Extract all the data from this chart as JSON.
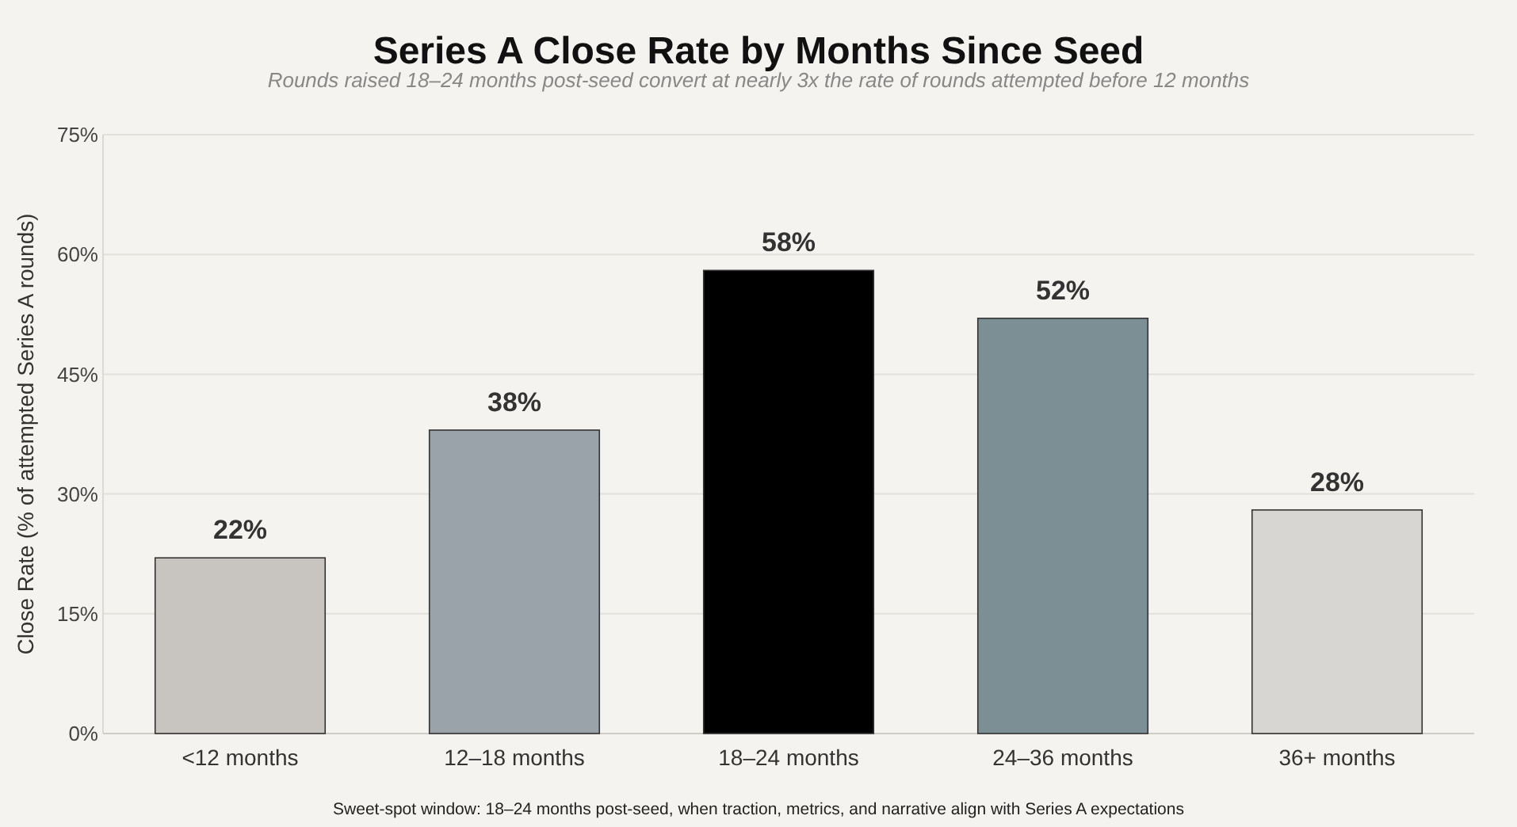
{
  "chart_data": {
    "type": "bar",
    "title": "Series A Close Rate by Months Since Seed",
    "subtitle": "Rounds raised 18–24 months post-seed convert at nearly 3x the rate of rounds attempted before 12 months",
    "ylabel": "Close Rate (% of attempted Series A rounds)",
    "categories": [
      "<12 months",
      "12–18 months",
      "18–24 months",
      "24–36 months",
      "36+ months"
    ],
    "values": [
      22,
      38,
      58,
      52,
      28
    ],
    "colors": [
      "#c8c4bf",
      "#9aa3a9",
      "#000000",
      "#7b8f95",
      "#d8d6d2"
    ],
    "value_labels": [
      "22%",
      "38%",
      "58%",
      "52%",
      "28%"
    ],
    "ylim": [
      0,
      75
    ],
    "yticks": [
      {
        "value": 0,
        "label": "0%"
      },
      {
        "value": 15,
        "label": "15%"
      },
      {
        "value": 30,
        "label": "30%"
      },
      {
        "value": 45,
        "label": "45%"
      },
      {
        "value": 60,
        "label": "60%"
      },
      {
        "value": 75,
        "label": "75%"
      }
    ],
    "grid": "y",
    "annotations": [
      "Sweet-spot window: 18–24 months post-seed, when traction, metrics, and narrative align with Series A expectations"
    ]
  }
}
